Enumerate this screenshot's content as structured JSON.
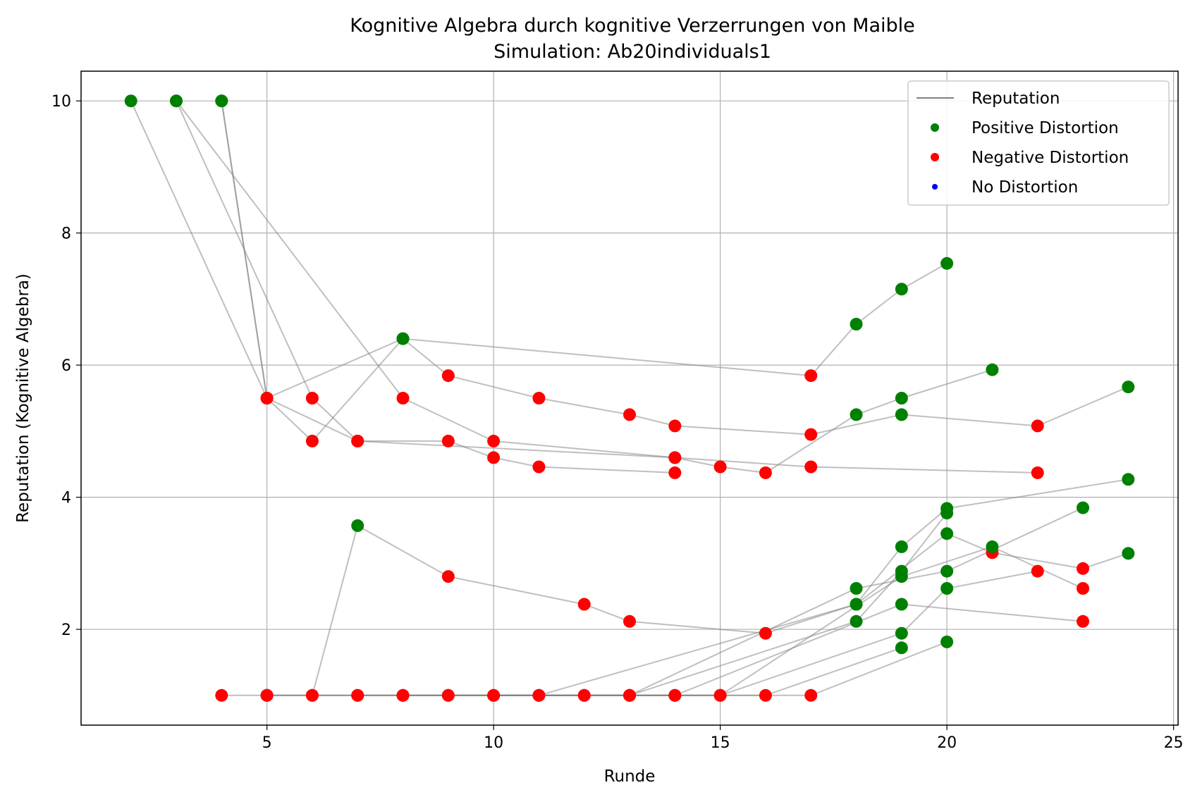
{
  "chart_data": {
    "type": "scatter",
    "title": "Kognitive Algebra durch kognitive Verzerrungen von Maible",
    "subtitle": "Simulation: Ab20individuals1",
    "xlabel": "Runde",
    "ylabel": "Reputation (Kognitive Algebra)",
    "xlim": [
      0.9,
      25.1
    ],
    "ylim": [
      0.55,
      10.45
    ],
    "xticks": [
      5,
      10,
      15,
      20,
      25
    ],
    "yticks": [
      2,
      4,
      6,
      8,
      10
    ],
    "grid": true,
    "legend_position": "top-right",
    "legend": [
      {
        "label": "Reputation",
        "kind": "line",
        "color": "#808080"
      },
      {
        "label": "Positive Distortion",
        "kind": "marker",
        "color": "#008000"
      },
      {
        "label": "Negative Distortion",
        "kind": "marker",
        "color": "#ff0000"
      },
      {
        "label": "No Distortion",
        "kind": "marker",
        "color": "#0000ff"
      }
    ],
    "colors": {
      "positive": "#008000",
      "negative": "#ff0000",
      "none": "#0000ff",
      "line": "#808080"
    },
    "series": [
      {
        "points": [
          [
            2,
            10,
            "p"
          ],
          [
            5,
            5.5,
            "n"
          ],
          [
            7,
            4.85,
            "n"
          ],
          [
            9,
            4.85,
            "n"
          ],
          [
            10,
            4.6,
            "n"
          ],
          [
            11,
            4.46,
            "n"
          ],
          [
            14,
            4.37,
            "n"
          ]
        ]
      },
      {
        "points": [
          [
            3,
            10,
            "p"
          ],
          [
            6,
            5.5,
            "n"
          ],
          [
            7,
            4.85,
            "n"
          ],
          [
            14,
            4.6,
            "n"
          ],
          [
            15,
            4.46,
            "n"
          ],
          [
            16,
            4.37,
            "n"
          ],
          [
            18,
            5.25,
            "p"
          ],
          [
            19,
            5.5,
            "p"
          ],
          [
            21,
            5.93,
            "p"
          ]
        ]
      },
      {
        "points": [
          [
            3,
            10,
            "p"
          ],
          [
            8,
            5.5,
            "n"
          ],
          [
            10,
            4.85,
            "n"
          ],
          [
            14,
            4.6,
            "n"
          ],
          [
            17,
            4.46,
            "n"
          ],
          [
            22,
            4.37,
            "n"
          ]
        ]
      },
      {
        "points": [
          [
            4,
            10,
            "p"
          ],
          [
            5,
            5.5,
            "n"
          ],
          [
            6,
            4.85,
            "n"
          ],
          [
            8,
            6.4,
            "p"
          ],
          [
            9,
            5.84,
            "n"
          ],
          [
            11,
            5.5,
            "n"
          ],
          [
            13,
            5.25,
            "n"
          ],
          [
            14,
            5.08,
            "n"
          ],
          [
            17,
            4.95,
            "n"
          ],
          [
            19,
            5.25,
            "p"
          ],
          [
            22,
            5.08,
            "n"
          ],
          [
            24,
            5.67,
            "p"
          ]
        ]
      },
      {
        "points": [
          [
            4,
            10,
            "p"
          ],
          [
            5,
            5.5,
            "n"
          ],
          [
            8,
            6.4,
            "p"
          ],
          [
            17,
            5.84,
            "n"
          ],
          [
            18,
            6.62,
            "p"
          ],
          [
            19,
            7.15,
            "p"
          ],
          [
            20,
            7.54,
            "p"
          ]
        ]
      },
      {
        "points": [
          [
            4,
            1,
            "n"
          ],
          [
            5,
            1,
            "n"
          ],
          [
            6,
            1,
            "n"
          ],
          [
            7,
            3.57,
            "p"
          ],
          [
            9,
            2.8,
            "n"
          ],
          [
            12,
            2.38,
            "n"
          ],
          [
            13,
            2.12,
            "n"
          ],
          [
            16,
            1.94,
            "n"
          ],
          [
            18,
            2.38,
            "p"
          ],
          [
            19,
            3.25,
            "p"
          ],
          [
            20,
            3.83,
            "p"
          ],
          [
            24,
            4.27,
            "p"
          ]
        ]
      },
      {
        "points": [
          [
            5,
            1,
            "n"
          ],
          [
            7,
            1,
            "n"
          ],
          [
            11,
            1,
            "n"
          ],
          [
            18,
            2.38,
            "p"
          ],
          [
            20,
            3.45,
            "p"
          ],
          [
            21,
            3.16,
            "n"
          ],
          [
            23,
            2.92,
            "n"
          ],
          [
            24,
            3.15,
            "p"
          ]
        ]
      },
      {
        "points": [
          [
            5,
            1,
            "n"
          ],
          [
            8,
            1,
            "n"
          ],
          [
            13,
            1,
            "n"
          ],
          [
            18,
            2.12,
            "p"
          ],
          [
            19,
            2.88,
            "p"
          ],
          [
            20,
            3.76,
            "p"
          ]
        ]
      },
      {
        "points": [
          [
            6,
            1,
            "n"
          ],
          [
            9,
            1,
            "n"
          ],
          [
            13,
            1,
            "n"
          ],
          [
            18,
            2.62,
            "p"
          ],
          [
            20,
            2.88,
            "p"
          ],
          [
            23,
            3.84,
            "p"
          ]
        ]
      },
      {
        "points": [
          [
            7,
            1,
            "n"
          ],
          [
            10,
            1,
            "n"
          ],
          [
            14,
            1,
            "n"
          ],
          [
            19,
            2.38,
            "p"
          ],
          [
            23,
            2.12,
            "n"
          ]
        ]
      },
      {
        "points": [
          [
            8,
            1,
            "n"
          ],
          [
            12,
            1,
            "n"
          ],
          [
            15,
            1,
            "n"
          ],
          [
            19,
            2.8,
            "p"
          ],
          [
            21,
            3.25,
            "p"
          ],
          [
            23,
            2.62,
            "n"
          ]
        ]
      },
      {
        "points": [
          [
            9,
            1,
            "n"
          ],
          [
            12,
            1,
            "n"
          ],
          [
            15,
            1,
            "n"
          ],
          [
            19,
            1.94,
            "p"
          ],
          [
            20,
            2.62,
            "p"
          ],
          [
            22,
            2.88,
            "n"
          ]
        ]
      },
      {
        "points": [
          [
            10,
            1,
            "n"
          ],
          [
            13,
            1,
            "n"
          ],
          [
            16,
            1,
            "n"
          ],
          [
            19,
            1.72,
            "p"
          ]
        ]
      },
      {
        "points": [
          [
            11,
            1,
            "n"
          ],
          [
            14,
            1,
            "n"
          ],
          [
            17,
            1,
            "n"
          ],
          [
            20,
            1.81,
            "p"
          ]
        ]
      }
    ]
  }
}
